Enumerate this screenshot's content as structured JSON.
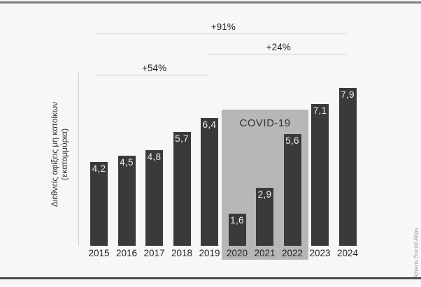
{
  "chart_data": {
    "type": "bar",
    "categories": [
      "2015",
      "2016",
      "2017",
      "2018",
      "2019",
      "2020",
      "2021",
      "2022",
      "2023",
      "2024"
    ],
    "values": [
      4.2,
      4.5,
      4.8,
      5.7,
      6.4,
      1.6,
      2.9,
      5.6,
      7.1,
      7.9
    ],
    "value_labels": [
      "4,2",
      "4,5",
      "4,8",
      "5,7",
      "6,4",
      "1,6",
      "2,9",
      "5,6",
      "7,1",
      "7,9"
    ],
    "title": "",
    "xlabel": "",
    "ylabel": "Διεθνείς αφίξεις μη κατοίκων (εκατομμύρια)",
    "ylabel_lines": [
      "Διεθνείς αφίξεις μη κατοίκων",
      "(εκατομμύρια)"
    ],
    "ylim": [
      0,
      8.7
    ],
    "grid": false,
    "legend": "none",
    "bar_color": "#3a3a3a",
    "bar_label_color": "#ededed",
    "annotations": [
      {
        "label": "+91%",
        "from": "2015",
        "to": "2024"
      },
      {
        "label": "+24%",
        "from": "2019",
        "to": "2024"
      },
      {
        "label": "+54%",
        "from": "2015",
        "to": "2019"
      }
    ],
    "highlight_region": {
      "label": "COVID-19",
      "from": "2020",
      "to": "2022",
      "color": "#b7b7b7"
    }
  },
  "credit": "Athens Social Atlas",
  "colors": {
    "background": "#f7f7f7",
    "top_rule": "#7e7e7e",
    "bottom_rule": "#4c4c4c",
    "axis_line": "#cccccc",
    "annotation_line": "#cccccc",
    "text": "#222222"
  }
}
